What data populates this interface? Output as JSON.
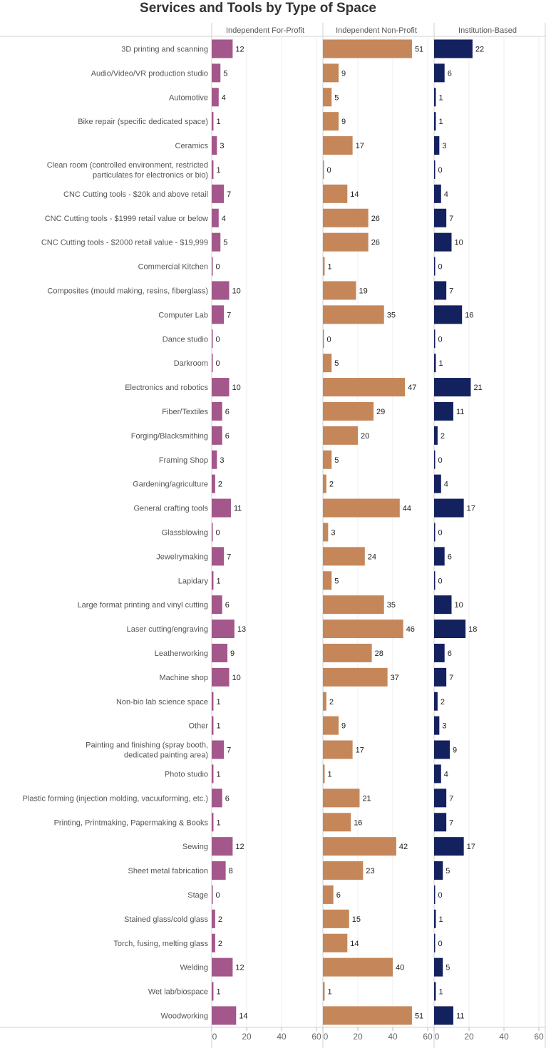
{
  "title": "Services and Tools by Type of Space",
  "chart_data": {
    "type": "bar",
    "orientation": "horizontal",
    "layout": "small-multiples",
    "title": "Services and Tools by Type of Space",
    "panels": [
      "Independent For-Profit",
      "Independent Non-Profit",
      "Institution-Based"
    ],
    "colors": [
      "#a3578a",
      "#c5875a",
      "#13215e"
    ],
    "xlim": [
      0,
      60
    ],
    "xticks": [
      0,
      20,
      40,
      60
    ],
    "grid": true,
    "categories": [
      [
        "3D printing and scanning"
      ],
      [
        "Audio/Video/VR production studio"
      ],
      [
        "Automotive"
      ],
      [
        "Bike repair (specific dedicated space)"
      ],
      [
        "Ceramics"
      ],
      [
        "Clean room (controlled environment, restricted",
        "particulates for electronics or bio)"
      ],
      [
        "CNC Cutting tools - $20k and above retail"
      ],
      [
        "CNC Cutting tools - $1999 retail value or below"
      ],
      [
        "CNC Cutting tools - $2000 retail value - $19,999"
      ],
      [
        "Commercial Kitchen"
      ],
      [
        "Composites (mould making, resins, fiberglass)"
      ],
      [
        "Computer Lab"
      ],
      [
        "Dance studio"
      ],
      [
        "Darkroom"
      ],
      [
        "Electronics and robotics"
      ],
      [
        "Fiber/Textiles"
      ],
      [
        "Forging/Blacksmithing"
      ],
      [
        "Framing Shop"
      ],
      [
        "Gardening/agriculture"
      ],
      [
        "General crafting tools"
      ],
      [
        "Glassblowing"
      ],
      [
        "Jewelrymaking"
      ],
      [
        "Lapidary"
      ],
      [
        "Large format printing and vinyl cutting"
      ],
      [
        "Laser cutting/engraving"
      ],
      [
        "Leatherworking"
      ],
      [
        "Machine shop"
      ],
      [
        "Non-bio lab science space"
      ],
      [
        "Other"
      ],
      [
        "Painting and finishing (spray booth,",
        "dedicated painting area)"
      ],
      [
        "Photo studio"
      ],
      [
        "Plastic forming (injection molding, vacuuforming, etc.)"
      ],
      [
        "Printing, Printmaking, Papermaking & Books"
      ],
      [
        "Sewing"
      ],
      [
        "Sheet metal fabrication"
      ],
      [
        "Stage"
      ],
      [
        "Stained glass/cold glass"
      ],
      [
        "Torch, fusing, melting glass"
      ],
      [
        "Welding"
      ],
      [
        "Wet lab/biospace"
      ],
      [
        "Woodworking"
      ]
    ],
    "series": [
      {
        "name": "Independent For-Profit",
        "values": [
          12,
          5,
          4,
          1,
          3,
          1,
          7,
          4,
          5,
          0,
          10,
          7,
          0,
          0,
          10,
          6,
          6,
          3,
          2,
          11,
          0,
          7,
          1,
          6,
          13,
          9,
          10,
          1,
          1,
          7,
          1,
          6,
          1,
          12,
          8,
          0,
          2,
          2,
          12,
          1,
          14
        ]
      },
      {
        "name": "Independent Non-Profit",
        "values": [
          51,
          9,
          5,
          9,
          17,
          0,
          14,
          26,
          26,
          1,
          19,
          35,
          0,
          5,
          47,
          29,
          20,
          5,
          2,
          44,
          3,
          24,
          5,
          35,
          46,
          28,
          37,
          2,
          9,
          17,
          1,
          21,
          16,
          42,
          23,
          6,
          15,
          14,
          40,
          1,
          51
        ]
      },
      {
        "name": "Institution-Based",
        "values": [
          22,
          6,
          1,
          1,
          3,
          0,
          4,
          7,
          10,
          0,
          7,
          16,
          0,
          1,
          21,
          11,
          2,
          0,
          4,
          17,
          0,
          6,
          0,
          10,
          18,
          6,
          7,
          2,
          3,
          9,
          4,
          7,
          7,
          17,
          5,
          0,
          1,
          0,
          5,
          1,
          11
        ]
      }
    ]
  }
}
